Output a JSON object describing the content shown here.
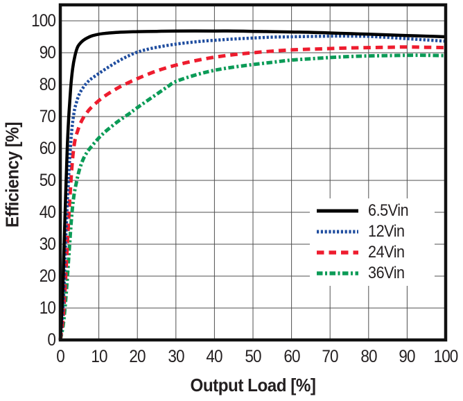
{
  "chart_data": {
    "type": "line",
    "title": "",
    "xlabel": "Output Load [%]",
    "ylabel": "Efficiency [%]",
    "xlim": [
      0,
      100
    ],
    "ylim": [
      0,
      105
    ],
    "x_ticks": [
      0,
      10,
      20,
      30,
      40,
      50,
      60,
      70,
      80,
      90,
      100
    ],
    "y_ticks": [
      0,
      10,
      20,
      30,
      40,
      50,
      60,
      70,
      80,
      90,
      100
    ],
    "grid": true,
    "legend_position": "inside-lower-right",
    "colors": {
      "background": "#ffffff",
      "frame": "#111111",
      "grid": "#4f4f4f",
      "text": "#231f20"
    },
    "series": [
      {
        "name": "6.5Vin",
        "color": "#000000",
        "style": "solid",
        "width": 4.5,
        "points": [
          [
            0,
            0
          ],
          [
            0.6,
            14
          ],
          [
            1,
            30
          ],
          [
            1.4,
            46
          ],
          [
            1.8,
            60
          ],
          [
            2.2,
            70
          ],
          [
            2.7,
            79
          ],
          [
            3.2,
            85
          ],
          [
            3.8,
            89
          ],
          [
            4.5,
            91.8
          ],
          [
            5.5,
            93.4
          ],
          [
            6.5,
            94.3
          ],
          [
            8,
            95.2
          ],
          [
            10,
            95.8
          ],
          [
            12,
            96.1
          ],
          [
            15,
            96.4
          ],
          [
            20,
            96.6
          ],
          [
            25,
            96.7
          ],
          [
            30,
            96.8
          ],
          [
            40,
            96.8
          ],
          [
            45,
            96.8
          ],
          [
            50,
            96.7
          ],
          [
            55,
            96.6
          ],
          [
            60,
            96.5
          ],
          [
            65,
            96.4
          ],
          [
            70,
            96.2
          ],
          [
            75,
            96
          ],
          [
            80,
            95.8
          ],
          [
            85,
            95.6
          ],
          [
            90,
            95.4
          ],
          [
            95,
            95.2
          ],
          [
            100,
            95
          ]
        ]
      },
      {
        "name": "12Vin",
        "color": "#1f4d9f",
        "style": "dotted",
        "width": 4.5,
        "points": [
          [
            0,
            0
          ],
          [
            0.8,
            12
          ],
          [
            1.3,
            28
          ],
          [
            1.9,
            45
          ],
          [
            2.5,
            58
          ],
          [
            3,
            66
          ],
          [
            3.6,
            71.5
          ],
          [
            4.2,
            74.5
          ],
          [
            5,
            77.2
          ],
          [
            6,
            79.2
          ],
          [
            7,
            80.7
          ],
          [
            8,
            81.8
          ],
          [
            10,
            83.5
          ],
          [
            12,
            85.1
          ],
          [
            14,
            86.6
          ],
          [
            16,
            88
          ],
          [
            18,
            89.2
          ],
          [
            20,
            90.2
          ],
          [
            22,
            90.9
          ],
          [
            25,
            91.7
          ],
          [
            30,
            92.7
          ],
          [
            35,
            93.4
          ],
          [
            40,
            93.9
          ],
          [
            45,
            94.3
          ],
          [
            50,
            94.6
          ],
          [
            55,
            94.9
          ],
          [
            60,
            95
          ],
          [
            65,
            95.1
          ],
          [
            70,
            95.2
          ],
          [
            75,
            95.2
          ],
          [
            80,
            95.1
          ],
          [
            85,
            94.8
          ],
          [
            90,
            94.4
          ],
          [
            95,
            94
          ],
          [
            100,
            93.6
          ]
        ]
      },
      {
        "name": "24Vin",
        "color": "#ee1c2e",
        "style": "dashed",
        "width": 5,
        "points": [
          [
            0,
            0
          ],
          [
            0.8,
            8
          ],
          [
            1.4,
            20
          ],
          [
            2,
            34
          ],
          [
            2.6,
            47
          ],
          [
            3.2,
            57
          ],
          [
            3.8,
            62.5
          ],
          [
            4.5,
            65.5
          ],
          [
            5.2,
            67.8
          ],
          [
            6,
            69.7
          ],
          [
            7,
            71.4
          ],
          [
            8,
            72.8
          ],
          [
            10,
            75
          ],
          [
            12,
            76.8
          ],
          [
            15,
            79
          ],
          [
            18,
            80.8
          ],
          [
            20,
            81.9
          ],
          [
            25,
            84.3
          ],
          [
            30,
            86.1
          ],
          [
            35,
            87.5
          ],
          [
            40,
            88.6
          ],
          [
            45,
            89.4
          ],
          [
            50,
            90
          ],
          [
            55,
            90.5
          ],
          [
            60,
            90.9
          ],
          [
            65,
            91.1
          ],
          [
            70,
            91.3
          ],
          [
            75,
            91.5
          ],
          [
            80,
            91.6
          ],
          [
            85,
            91.7
          ],
          [
            90,
            91.8
          ],
          [
            95,
            91.7
          ],
          [
            100,
            91.6
          ]
        ]
      },
      {
        "name": "36Vin",
        "color": "#0b9b57",
        "style": "dashdot",
        "width": 5,
        "points": [
          [
            0,
            0
          ],
          [
            0.8,
            5
          ],
          [
            1.5,
            14
          ],
          [
            2.2,
            26
          ],
          [
            2.9,
            38
          ],
          [
            3.5,
            45
          ],
          [
            4.2,
            49.5
          ],
          [
            5,
            53.5
          ],
          [
            6,
            56.8
          ],
          [
            7,
            58.9
          ],
          [
            8,
            60.5
          ],
          [
            10,
            63.3
          ],
          [
            12,
            65.6
          ],
          [
            15,
            68.5
          ],
          [
            18,
            71
          ],
          [
            20,
            72.8
          ],
          [
            25,
            77
          ],
          [
            28,
            79.5
          ],
          [
            30,
            81
          ],
          [
            35,
            83
          ],
          [
            40,
            84.5
          ],
          [
            45,
            85.5
          ],
          [
            50,
            86.3
          ],
          [
            55,
            87
          ],
          [
            60,
            87.7
          ],
          [
            65,
            88.1
          ],
          [
            70,
            88.5
          ],
          [
            75,
            88.8
          ],
          [
            80,
            89
          ],
          [
            85,
            89.1
          ],
          [
            90,
            89.2
          ],
          [
            95,
            89.2
          ],
          [
            100,
            89.1
          ]
        ]
      }
    ]
  }
}
